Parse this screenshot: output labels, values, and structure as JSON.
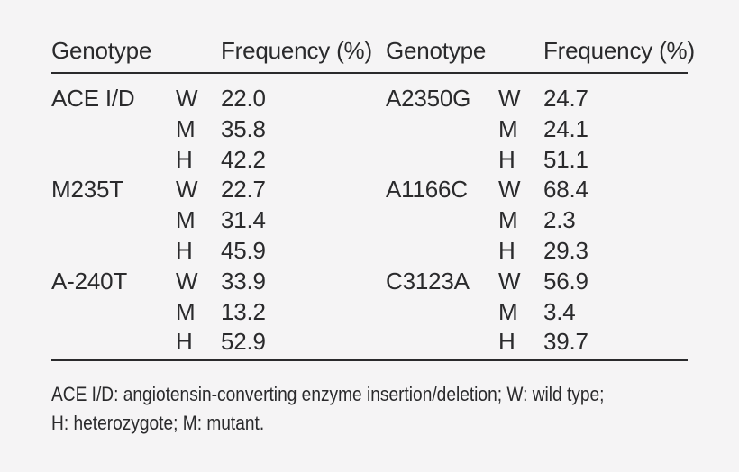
{
  "page": {
    "background_color": "#f5f4f5",
    "text_color": "#2a2a2c"
  },
  "table": {
    "headers": {
      "genotype_left": "Genotype",
      "frequency_left": "Frequency (%)",
      "genotype_right": "Genotype",
      "frequency_right": "Frequency (%)"
    },
    "rows": [
      {
        "g1": "ACE I/D",
        "a1": "W",
        "v1": "22.0",
        "g2": "A2350G",
        "a2": "W",
        "v2": "24.7"
      },
      {
        "g1": "",
        "a1": "M",
        "v1": "35.8",
        "g2": "",
        "a2": "M",
        "v2": "24.1"
      },
      {
        "g1": "",
        "a1": "H",
        "v1": "42.2",
        "g2": "",
        "a2": "H",
        "v2": "51.1"
      },
      {
        "g1": "M235T",
        "a1": "W",
        "v1": "22.7",
        "g2": "A1166C",
        "a2": "W",
        "v2": "68.4"
      },
      {
        "g1": "",
        "a1": "M",
        "v1": "31.4",
        "g2": "",
        "a2": "M",
        "v2": "2.3"
      },
      {
        "g1": "",
        "a1": "H",
        "v1": "45.9",
        "g2": "",
        "a2": "H",
        "v2": "29.3"
      },
      {
        "g1": "A-240T",
        "a1": "W",
        "v1": "33.9",
        "g2": "C3123A",
        "a2": "W",
        "v2": "56.9"
      },
      {
        "g1": "",
        "a1": "M",
        "v1": "13.2",
        "g2": "",
        "a2": "M",
        "v2": "3.4"
      },
      {
        "g1": "",
        "a1": "H",
        "v1": "52.9",
        "g2": "",
        "a2": "H",
        "v2": "39.7"
      }
    ],
    "footnote_line1": "ACE I/D: angiotensin-converting enzyme insertion/deletion; W: wild type;",
    "footnote_line2": "H: heterozygote; M: mutant."
  }
}
